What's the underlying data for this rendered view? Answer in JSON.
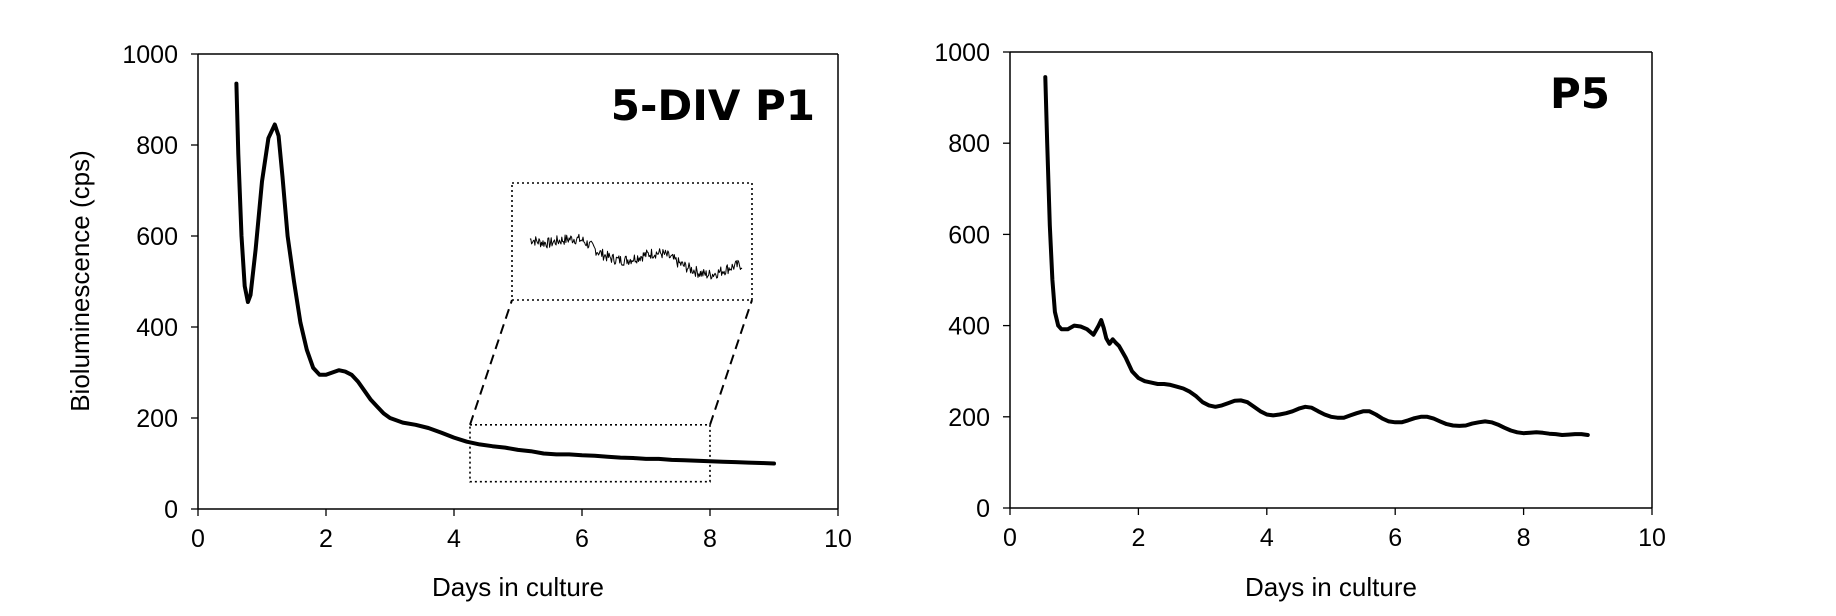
{
  "chart_data": [
    {
      "type": "line",
      "panel_label": "5-DIV P1",
      "xlabel": "Days in culture",
      "ylabel": "Bioluminescence (cps)",
      "xlim": [
        0,
        10
      ],
      "ylim": [
        0,
        1000
      ],
      "xticks": [
        "0",
        "2",
        "4",
        "6",
        "8",
        "10"
      ],
      "yticks": [
        "0",
        "200",
        "400",
        "600",
        "800",
        "1000"
      ],
      "grid": false,
      "legend": "none",
      "series": [
        {
          "x": [
            0.6,
            0.63,
            0.68,
            0.73,
            0.78,
            0.82,
            0.9,
            1.0,
            1.1,
            1.2,
            1.26,
            1.32,
            1.4,
            1.5,
            1.6,
            1.7,
            1.8,
            1.9,
            2.0,
            2.1,
            2.2,
            2.3,
            2.4,
            2.5,
            2.6,
            2.7,
            2.8,
            2.9,
            3.0,
            3.2,
            3.4,
            3.6,
            3.8,
            4.0,
            4.2,
            4.4,
            4.6,
            4.8,
            5.0,
            5.2,
            5.4,
            5.6,
            5.8,
            6.0,
            6.2,
            6.4,
            6.6,
            6.8,
            7.0,
            7.2,
            7.4,
            7.6,
            7.8,
            8.0,
            8.2,
            8.4,
            8.6,
            8.8,
            9.0
          ],
          "y": [
            935,
            780,
            600,
            490,
            455,
            470,
            570,
            720,
            815,
            845,
            820,
            730,
            600,
            500,
            410,
            350,
            310,
            295,
            295,
            300,
            305,
            302,
            295,
            280,
            260,
            240,
            225,
            210,
            200,
            190,
            185,
            178,
            168,
            157,
            148,
            142,
            138,
            135,
            130,
            127,
            122,
            120,
            120,
            118,
            117,
            115,
            113,
            112,
            110,
            110,
            108,
            107,
            106,
            105,
            104,
            103,
            102,
            101,
            100
          ]
        }
      ],
      "inset": {
        "zoom_x": [
          4.25,
          8.0
        ],
        "zoom_y": [
          60,
          185
        ]
      }
    },
    {
      "type": "line",
      "panel_label": "P5",
      "xlabel": "Days in culture",
      "ylabel": "",
      "xlim": [
        0,
        10
      ],
      "ylim": [
        0,
        1000
      ],
      "xticks": [
        "0",
        "2",
        "4",
        "6",
        "8",
        "10"
      ],
      "yticks": [
        "0",
        "200",
        "400",
        "600",
        "800",
        "1000"
      ],
      "grid": false,
      "legend": "none",
      "series": [
        {
          "x": [
            0.55,
            0.58,
            0.62,
            0.66,
            0.7,
            0.75,
            0.8,
            0.9,
            1.0,
            1.1,
            1.2,
            1.3,
            1.38,
            1.42,
            1.46,
            1.5,
            1.55,
            1.6,
            1.65,
            1.7,
            1.8,
            1.9,
            2.0,
            2.1,
            2.2,
            2.3,
            2.4,
            2.5,
            2.6,
            2.7,
            2.8,
            2.9,
            3.0,
            3.1,
            3.2,
            3.3,
            3.4,
            3.5,
            3.6,
            3.7,
            3.8,
            3.9,
            4.0,
            4.1,
            4.2,
            4.3,
            4.4,
            4.5,
            4.6,
            4.7,
            4.8,
            4.9,
            5.0,
            5.1,
            5.2,
            5.3,
            5.4,
            5.5,
            5.6,
            5.7,
            5.8,
            5.9,
            6.0,
            6.1,
            6.2,
            6.3,
            6.4,
            6.5,
            6.6,
            6.7,
            6.8,
            6.9,
            7.0,
            7.1,
            7.2,
            7.3,
            7.4,
            7.5,
            7.6,
            7.7,
            7.8,
            7.9,
            8.0,
            8.1,
            8.2,
            8.3,
            8.4,
            8.5,
            8.6,
            8.7,
            8.8,
            8.9,
            9.0
          ],
          "y": [
            945,
            800,
            620,
            500,
            430,
            400,
            392,
            392,
            400,
            398,
            392,
            380,
            400,
            412,
            395,
            372,
            360,
            370,
            362,
            355,
            330,
            300,
            285,
            278,
            275,
            272,
            272,
            270,
            266,
            262,
            255,
            245,
            232,
            225,
            222,
            225,
            230,
            235,
            236,
            232,
            222,
            212,
            205,
            203,
            205,
            208,
            212,
            218,
            222,
            220,
            212,
            205,
            200,
            198,
            198,
            203,
            208,
            212,
            212,
            205,
            196,
            190,
            188,
            188,
            192,
            197,
            200,
            200,
            196,
            190,
            184,
            181,
            180,
            181,
            185,
            188,
            190,
            188,
            183,
            176,
            170,
            166,
            164,
            165,
            166,
            165,
            163,
            162,
            160,
            161,
            162,
            162,
            160
          ]
        }
      ]
    }
  ]
}
